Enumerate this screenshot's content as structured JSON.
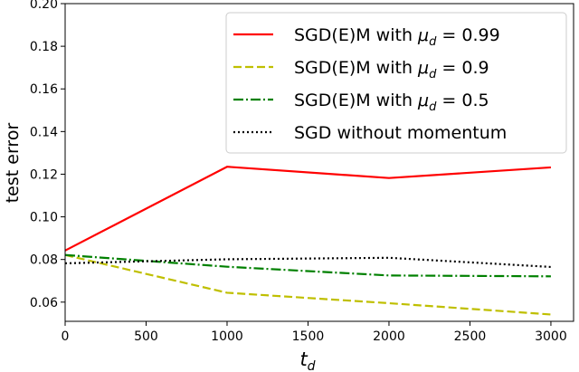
{
  "chart_data": {
    "type": "line",
    "title": "",
    "xlabel": "t",
    "xlabel_sub": "d",
    "ylabel": "test error",
    "xlim": [
      0,
      3140
    ],
    "ylim": [
      0.051,
      0.2
    ],
    "xticks": [
      0,
      500,
      1000,
      1500,
      2000,
      2500,
      3000
    ],
    "yticks": [
      0.06,
      0.08,
      0.1,
      0.12,
      0.14,
      0.16,
      0.18,
      0.2
    ],
    "ytick_labels": [
      "0.06",
      "0.08",
      "0.10",
      "0.12",
      "0.14",
      "0.16",
      "0.18",
      "0.20"
    ],
    "grid": false,
    "legend_position": "top-right",
    "x": [
      0,
      1000,
      2000,
      3000
    ],
    "series": [
      {
        "name": "SGD(E)M with μ_d = 0.99",
        "label_main": "SGD(E)M with ",
        "label_mu": "μ",
        "label_sub": "d",
        "label_val": " = 0.99",
        "color": "#ff0000",
        "style": "solid",
        "values": [
          0.0842,
          0.1235,
          0.1182,
          0.1232
        ]
      },
      {
        "name": "SGD(E)M with μ_d = 0.9",
        "label_main": "SGD(E)M with ",
        "label_mu": "μ",
        "label_sub": "d",
        "label_val": " = 0.9",
        "color": "#bfbf00",
        "style": "dashed",
        "values": [
          0.0821,
          0.0644,
          0.0595,
          0.0542
        ]
      },
      {
        "name": "SGD(E)M with μ_d = 0.5",
        "label_main": "SGD(E)M with ",
        "label_mu": "μ",
        "label_sub": "d",
        "label_val": " = 0.5",
        "color": "#008000",
        "style": "dashdot",
        "values": [
          0.0821,
          0.0766,
          0.0725,
          0.0721
        ]
      },
      {
        "name": "SGD without momentum",
        "label_main": "SGD without momentum",
        "label_mu": "",
        "label_sub": "",
        "label_val": "",
        "color": "#000000",
        "style": "dotted",
        "values": [
          0.0782,
          0.0801,
          0.0808,
          0.0765
        ]
      }
    ]
  }
}
